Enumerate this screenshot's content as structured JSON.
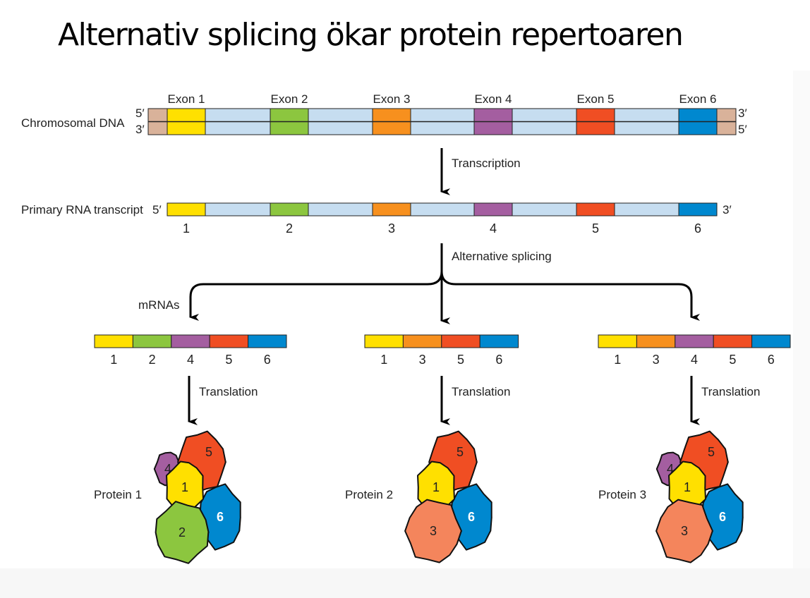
{
  "title": "Alternativ splicing ökar protein repertoaren",
  "colors": {
    "flank": "#d9b29a",
    "intron": "#c6ddf0",
    "exon_1": "#ffe000",
    "exon_2": "#8cc63f",
    "exon_3": "#f7901e",
    "exon_4": "#a45ea0",
    "exon_5": "#f04e23",
    "exon_6": "#0088cf",
    "protein_3": "#f4855c"
  },
  "dna": {
    "label": "Chromosomal DNA",
    "left_top": "5′",
    "left_bottom": "3′",
    "right_top": "3′",
    "right_bottom": "5′",
    "exons": [
      "Exon 1",
      "Exon 2",
      "Exon 3",
      "Exon 4",
      "Exon 5",
      "Exon 6"
    ]
  },
  "transcription_label": "Transcription",
  "rna": {
    "label": "Primary RNA transcript",
    "left_end": "5′",
    "right_end": "3′",
    "numbers": [
      "1",
      "2",
      "3",
      "4",
      "5",
      "6"
    ]
  },
  "splicing_label": "Alternative splicing",
  "mrnas_label": "mRNAs",
  "translation_label": "Translation",
  "mrnas": [
    {
      "exons": [
        "1",
        "2",
        "4",
        "5",
        "6"
      ]
    },
    {
      "exons": [
        "1",
        "3",
        "5",
        "6"
      ]
    },
    {
      "exons": [
        "1",
        "3",
        "4",
        "5",
        "6"
      ]
    }
  ],
  "proteins": [
    {
      "label": "Protein 1",
      "domains": [
        "4",
        "5",
        "1",
        "6",
        "2"
      ]
    },
    {
      "label": "Protein 2",
      "domains": [
        "5",
        "1",
        "6",
        "3"
      ]
    },
    {
      "label": "Protein 3",
      "domains": [
        "4",
        "5",
        "1",
        "6",
        "3"
      ]
    }
  ]
}
